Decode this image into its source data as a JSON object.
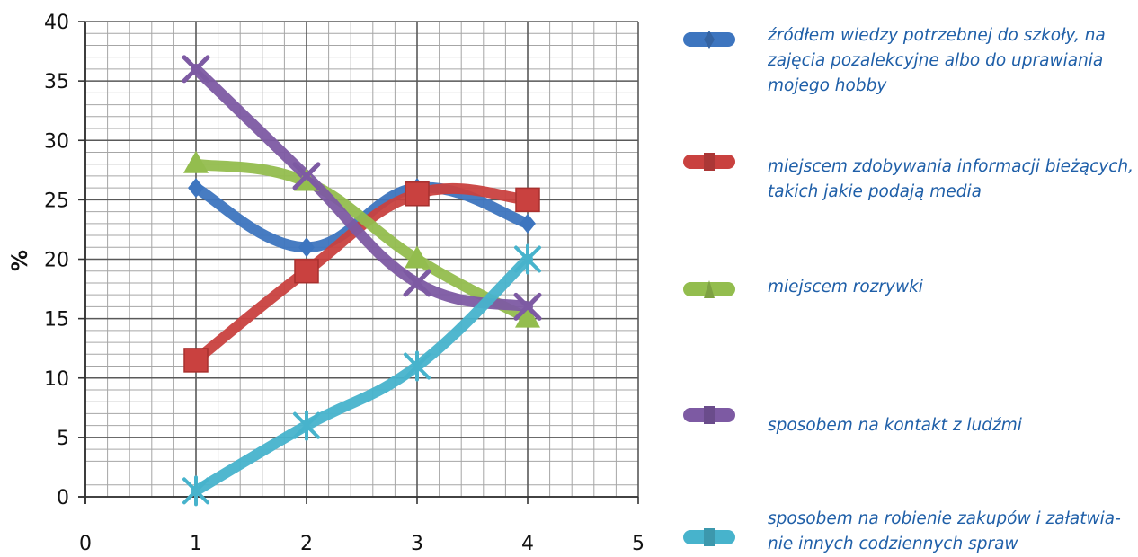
{
  "chart_data": {
    "type": "line",
    "ylabel": "%",
    "xlim": [
      0,
      5
    ],
    "ylim": [
      0,
      40
    ],
    "x_ticks": [
      "0",
      "1",
      "2",
      "3",
      "4",
      "5"
    ],
    "y_ticks": [
      "0",
      "5",
      "10",
      "15",
      "20",
      "25",
      "30",
      "35",
      "40"
    ],
    "grid": true,
    "x": [
      1,
      2,
      3,
      4
    ],
    "legend_position": "right",
    "series": [
      {
        "name": "źródłem wiedzy potrzebnej do szkoły, na zajęcia pozalekcyjne albo do uprawiania mojego hobby",
        "values": [
          26,
          21,
          26,
          23
        ],
        "color": "#3d75bf",
        "marker": "diamond"
      },
      {
        "name": "miejscem zdobywania informacji bieżących, takich jakie podają media",
        "values": [
          11.5,
          19,
          25.5,
          25
        ],
        "color": "#c9413f",
        "marker": "square"
      },
      {
        "name": "miejscem rozrywki",
        "values": [
          28,
          26.5,
          20,
          15
        ],
        "color": "#93bd4e",
        "marker": "triangle"
      },
      {
        "name": "sposobem na kontakt z ludźmi",
        "values": [
          36,
          27,
          18,
          16
        ],
        "color": "#7d5aa3",
        "marker": "x"
      },
      {
        "name": "sposobem na robienie zakupów i załatwia-nie innych codziennych spraw",
        "values": [
          0.5,
          6,
          11,
          20
        ],
        "color": "#47b3cc",
        "marker": "star"
      }
    ]
  },
  "legend": {
    "items": [
      {
        "label_lines": [
          "źródłem wiedzy potrzebnej do szkoły, na",
          "zajęcia pozalekcyjne albo do uprawiania",
          "mojego hobby"
        ]
      },
      {
        "label_lines": [
          "miejscem zdobywania informacji bieżących,",
          "takich jakie podają media"
        ]
      },
      {
        "label_lines": [
          "miejscem rozrywki"
        ]
      },
      {
        "label_lines": [
          "sposobem na kontakt z ludźmi"
        ]
      },
      {
        "label_lines": [
          "sposobem na robienie zakupów i załatwia-",
          "nie innych codziennych spraw"
        ]
      }
    ]
  }
}
